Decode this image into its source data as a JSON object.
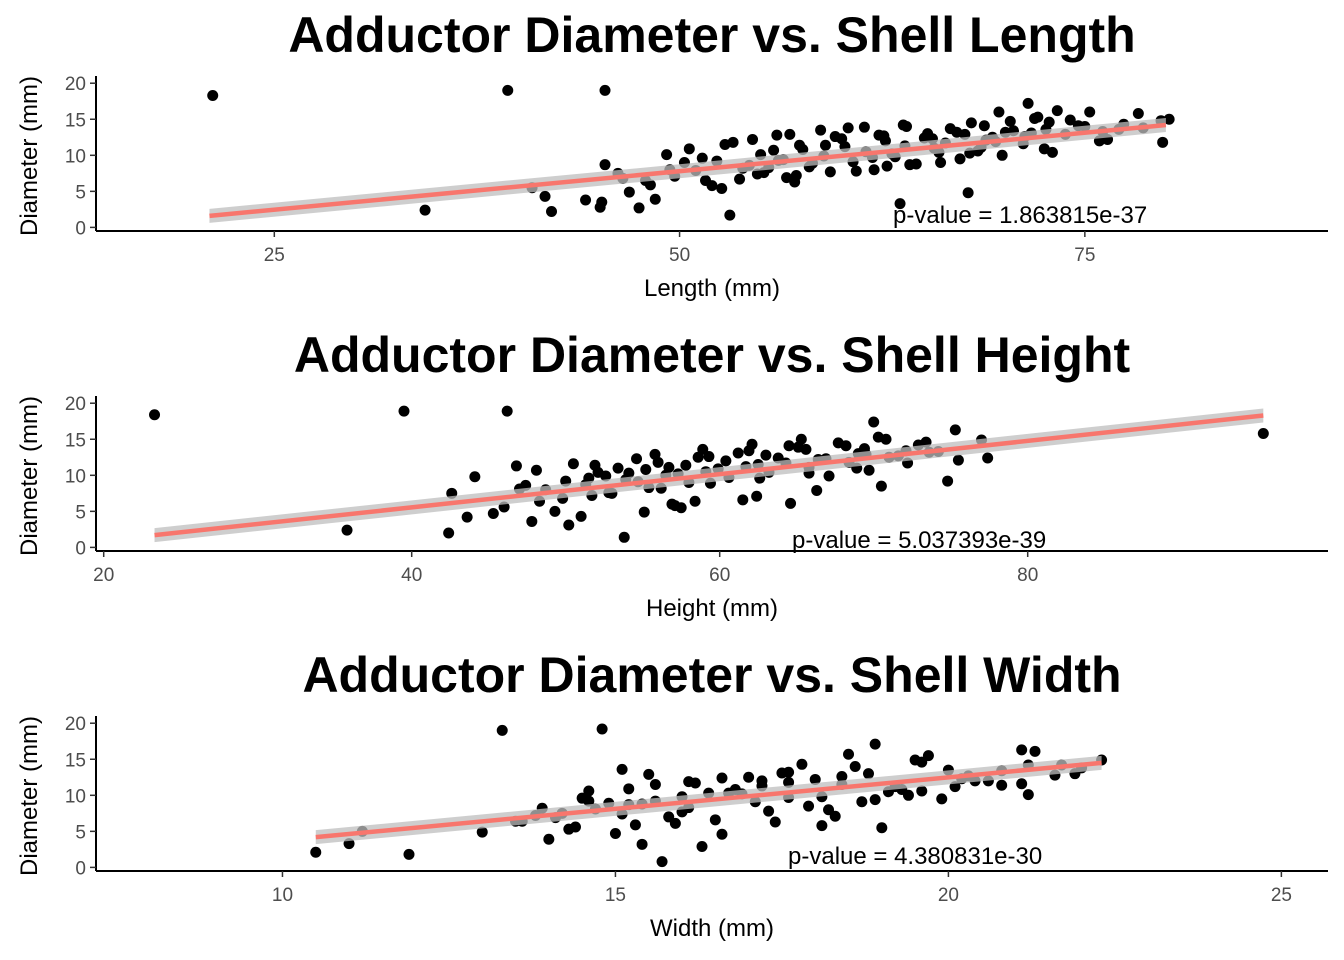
{
  "chart_data": [
    {
      "type": "scatter",
      "title": "Adductor Diameter vs. Shell Length",
      "xlabel": "Length (mm)",
      "ylabel": "Diameter (mm)",
      "xlim": [
        14,
        90
      ],
      "ylim": [
        -0.5,
        21
      ],
      "xticks": [
        25,
        50,
        75
      ],
      "yticks": [
        0,
        5,
        10,
        15,
        20
      ],
      "grid": false,
      "annotation": "p-value = 1.863815e-37",
      "fit": {
        "x": [
          21,
          80
        ],
        "y": [
          1.6,
          14.2
        ],
        "color": "#F8766D"
      },
      "points": {
        "x": [
          21.2,
          39.4,
          45.4,
          34.3,
          42.1,
          41.7,
          40.9,
          44.2,
          45.1,
          45.4,
          46.2,
          46.5,
          47.9,
          48.5,
          46.9,
          45.2,
          47.5,
          48.2,
          49.4,
          53.1,
          52.6,
          67.8,
          63.6,
          57.2,
          62.8,
          56.1,
          54.3,
          51.0,
          49.7,
          51.6,
          50.3,
          53.9,
          55.0,
          56.4,
          57.6,
          58.9,
          60.2,
          61.5,
          62.7,
          63.9,
          65.1,
          66.4,
          67.6,
          68.9,
          70.1,
          71.3,
          72.6,
          73.8,
          75.0,
          76.1,
          77.4,
          78.6,
          79.7,
          80.2,
          79.8,
          69.7,
          71.5,
          72.8,
          74.1,
          52.0,
          53.7,
          55.2,
          56.6,
          58.0,
          59.3,
          60.7,
          62.0,
          63.3,
          64.6,
          66.0,
          67.3,
          68.6,
          69.9,
          71.2,
          72.5,
          52.8,
          54.5,
          56.0,
          57.4,
          58.7,
          60.0,
          61.4,
          62.6,
          63.8,
          65.3,
          66.7,
          68.0,
          69.3,
          70.6,
          71.9,
          73.3,
          74.6,
          75.9,
          77.1,
          78.3,
          51.4,
          55.8,
          59.6,
          63.1,
          66.1,
          69.5,
          73.0,
          76.4,
          54.8,
          58.2,
          61.9,
          65.7,
          68.4,
          71.7,
          57.1,
          60.9,
          64.2,
          67.9,
          50.6,
          53.3,
          56.8,
          60.4,
          64.0,
          67.1,
          70.4,
          49.2,
          52.3,
          55.5,
          59.0,
          62.3,
          65.6,
          68.8,
          72.1,
          75.3
        ],
        "y": [
          18.3,
          19.0,
          19.0,
          2.4,
          2.2,
          4.3,
          5.5,
          3.8,
          2.8,
          8.7,
          7.5,
          6.8,
          6.5,
          3.9,
          4.9,
          3.5,
          2.7,
          5.9,
          8.0,
          1.7,
          5.4,
          4.8,
          3.3,
          7.2,
          8.5,
          9.3,
          8.6,
          7.9,
          7.1,
          6.5,
          9.0,
          8.2,
          10.1,
          9.4,
          10.8,
          9.9,
          11.2,
          10.5,
          12.0,
          11.3,
          12.4,
          11.7,
          12.9,
          12.1,
          13.2,
          12.6,
          13.6,
          12.9,
          14.0,
          13.3,
          14.3,
          13.8,
          14.8,
          15.0,
          11.8,
          16.0,
          17.2,
          14.6,
          14.9,
          5.8,
          6.7,
          7.6,
          6.9,
          8.4,
          7.7,
          9.1,
          8.0,
          9.8,
          8.8,
          10.4,
          9.5,
          11.1,
          10.0,
          11.6,
          10.9,
          11.5,
          12.2,
          12.8,
          11.4,
          13.5,
          12.3,
          13.9,
          12.7,
          14.2,
          13.0,
          13.7,
          14.5,
          12.5,
          13.4,
          15.1,
          16.2,
          14.1,
          12.0,
          13.6,
          15.8,
          9.6,
          10.7,
          12.6,
          10.2,
          9.0,
          11.9,
          10.4,
          12.2,
          7.4,
          8.9,
          9.7,
          11.0,
          10.6,
          13.1,
          6.3,
          7.8,
          8.7,
          10.3,
          10.9,
          11.8,
          12.9,
          13.8,
          14.0,
          13.2,
          14.7,
          10.1,
          9.2,
          8.3,
          11.4,
          12.8,
          12.3,
          14.1,
          15.3,
          16.0
        ]
      }
    },
    {
      "type": "scatter",
      "title": "Adductor Diameter vs. Shell Height",
      "xlabel": "Height (mm)",
      "ylabel": "Diameter (mm)",
      "xlim": [
        19.5,
        99.5
      ],
      "ylim": [
        -0.5,
        21
      ],
      "xticks": [
        20,
        40,
        60,
        80
      ],
      "yticks": [
        0,
        5,
        10,
        15,
        20
      ],
      "grid": false,
      "annotation": "p-value = 5.037393e-39",
      "fit": {
        "x": [
          23.3,
          95.3
        ],
        "y": [
          1.7,
          18.3
        ],
        "color": "#F8766D"
      },
      "points": {
        "x": [
          23.3,
          39.5,
          46.2,
          35.8,
          42.4,
          42.6,
          43.6,
          44.1,
          45.3,
          46.0,
          46.8,
          47.0,
          47.8,
          48.3,
          49.3,
          50.2,
          51.0,
          51.7,
          53.8,
          55.1,
          56.9,
          57.5,
          64.6,
          70.0,
          69.4,
          77.4,
          95.3,
          77.0,
          75.3,
          73.4,
          72.1,
          70.8,
          69.5,
          68.2,
          66.9,
          65.6,
          64.3,
          63.0,
          61.7,
          60.4,
          59.1,
          57.8,
          56.5,
          55.2,
          53.9,
          52.6,
          51.3,
          50.0,
          48.7,
          47.4,
          52.1,
          53.4,
          54.7,
          56.0,
          57.3,
          58.6,
          59.9,
          61.2,
          62.5,
          63.8,
          65.1,
          66.4,
          67.7,
          69.0,
          70.3,
          71.6,
          72.9,
          74.2,
          75.5,
          52.8,
          55.4,
          58.0,
          60.6,
          63.2,
          65.8,
          68.4,
          71.0,
          73.6,
          51.5,
          54.1,
          56.7,
          59.3,
          61.9,
          64.5,
          67.1,
          69.7,
          49.8,
          53.0,
          56.2,
          59.4,
          62.6,
          65.8,
          68.9,
          72.2,
          55.8,
          58.9,
          62.1,
          65.3,
          50.5,
          54.6,
          58.4,
          62.4,
          66.3,
          70.5,
          74.8,
          48.1,
          51.9,
          57.1,
          61.5
        ],
        "y": [
          18.4,
          18.9,
          18.9,
          2.4,
          2.0,
          7.5,
          4.2,
          9.8,
          4.7,
          5.6,
          11.3,
          8.1,
          3.6,
          6.4,
          5.0,
          3.1,
          4.3,
          7.2,
          1.4,
          4.9,
          6.0,
          5.5,
          6.1,
          17.4,
          13.7,
          12.4,
          15.8,
          14.9,
          16.3,
          14.6,
          13.4,
          15.0,
          12.9,
          14.1,
          12.3,
          13.6,
          11.7,
          12.8,
          11.2,
          12.0,
          10.5,
          11.4,
          10.0,
          10.8,
          9.4,
          9.9,
          8.7,
          9.2,
          8.0,
          8.6,
          10.4,
          11.0,
          9.1,
          11.8,
          10.2,
          12.5,
          10.9,
          13.1,
          11.5,
          12.4,
          13.9,
          12.2,
          14.5,
          13.0,
          15.3,
          12.7,
          14.2,
          13.3,
          12.1,
          7.6,
          8.3,
          9.0,
          9.7,
          10.4,
          11.1,
          11.8,
          12.5,
          13.2,
          9.6,
          10.3,
          11.1,
          12.6,
          13.4,
          14.1,
          9.9,
          10.7,
          6.8,
          7.5,
          8.2,
          8.9,
          9.6,
          10.3,
          11.0,
          11.7,
          12.9,
          13.6,
          14.3,
          15.0,
          11.6,
          12.3,
          6.4,
          7.1,
          7.9,
          8.5,
          9.2,
          10.7,
          11.4,
          5.8,
          6.6
        ]
      }
    },
    {
      "type": "scatter",
      "title": "Adductor Diameter vs. Shell Width",
      "xlabel": "Width (mm)",
      "ylabel": "Diameter (mm)",
      "xlim": [
        7.2,
        25.7
      ],
      "ylim": [
        -0.5,
        21
      ],
      "xticks": [
        10,
        15,
        20,
        25
      ],
      "yticks": [
        0,
        5,
        10,
        15,
        20
      ],
      "grid": false,
      "annotation": "p-value = 4.380831e-30",
      "fit": {
        "x": [
          10.5,
          22.3
        ],
        "y": [
          4.2,
          14.5
        ],
        "color": "#F8766D"
      },
      "points": {
        "x": [
          10.5,
          11.0,
          11.2,
          11.9,
          13.3,
          14.8,
          13.0,
          13.5,
          13.8,
          14.0,
          14.4,
          14.6,
          15.1,
          15.4,
          15.7,
          15.9,
          16.3,
          16.7,
          17.2,
          17.6,
          18.1,
          18.4,
          18.9,
          19.3,
          19.5,
          19.9,
          20.3,
          20.8,
          21.1,
          21.3,
          21.2,
          22.3,
          21.7,
          21.9,
          22.0,
          14.2,
          14.7,
          15.2,
          15.6,
          16.0,
          16.4,
          16.8,
          17.2,
          17.6,
          18.0,
          18.4,
          18.8,
          19.2,
          19.6,
          20.0,
          20.4,
          20.8,
          21.2,
          13.6,
          14.1,
          14.6,
          15.1,
          15.6,
          16.1,
          16.6,
          17.1,
          17.6,
          18.1,
          18.6,
          19.1,
          19.6,
          20.1,
          20.6,
          21.1,
          21.6,
          13.9,
          14.5,
          15.3,
          15.8,
          16.5,
          17.3,
          17.9,
          18.7,
          19.4,
          20.2,
          15.0,
          15.5,
          16.2,
          16.9,
          17.5,
          18.2,
          18.9,
          19.7,
          14.3,
          14.9,
          15.4,
          16.0,
          16.6,
          17.4,
          18.3,
          19.0,
          15.2,
          16.1,
          17.0,
          17.8,
          18.5
        ],
        "y": [
          2.1,
          3.3,
          5.0,
          1.8,
          19.0,
          19.2,
          4.9,
          6.4,
          7.2,
          3.9,
          5.6,
          9.2,
          13.6,
          8.8,
          0.8,
          6.1,
          2.9,
          10.3,
          12.0,
          9.7,
          5.8,
          11.5,
          17.1,
          10.8,
          14.9,
          9.5,
          12.7,
          13.4,
          16.3,
          16.1,
          10.1,
          14.9,
          14.2,
          13.0,
          13.8,
          7.5,
          8.1,
          8.7,
          9.2,
          9.8,
          10.3,
          10.8,
          11.3,
          11.8,
          12.2,
          12.6,
          13.0,
          11.2,
          10.6,
          13.5,
          12.0,
          11.4,
          14.2,
          6.4,
          6.9,
          10.6,
          7.4,
          11.5,
          8.3,
          12.4,
          9.1,
          13.2,
          9.8,
          14.0,
          10.5,
          14.6,
          11.2,
          12.0,
          11.6,
          12.8,
          8.2,
          9.6,
          5.9,
          7.0,
          6.6,
          7.8,
          8.5,
          9.1,
          10.0,
          12.3,
          4.7,
          12.9,
          11.7,
          10.2,
          13.1,
          8.0,
          9.4,
          15.5,
          5.3,
          8.9,
          3.2,
          7.7,
          4.6,
          6.3,
          7.1,
          5.5,
          10.9,
          11.9,
          12.5,
          14.3,
          15.7
        ]
      }
    }
  ]
}
